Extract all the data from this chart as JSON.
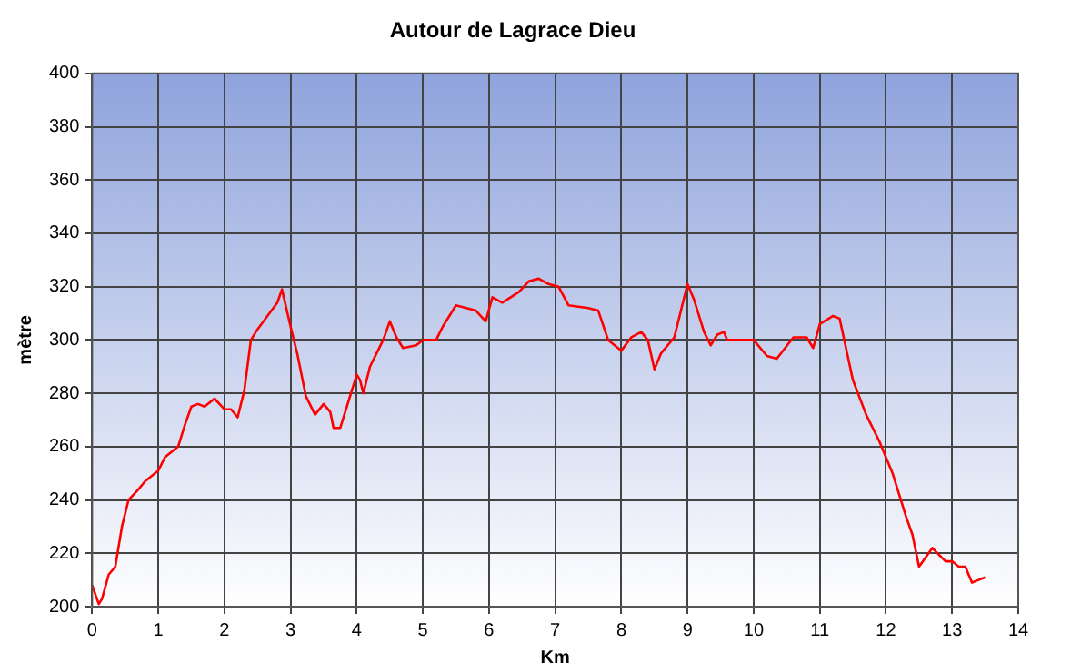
{
  "chart_data": {
    "type": "line",
    "title": "Autour de Lagrace Dieu",
    "xlabel": "Km",
    "ylabel": "mètre",
    "x": [
      0,
      0.1,
      0.15,
      0.25,
      0.35,
      0.45,
      0.55,
      0.7,
      0.8,
      1.0,
      1.1,
      1.3,
      1.4,
      1.5,
      1.6,
      1.7,
      1.85,
      2.0,
      2.1,
      2.2,
      2.3,
      2.4,
      2.5,
      2.65,
      2.8,
      2.87,
      3.0,
      3.1,
      3.23,
      3.37,
      3.5,
      3.6,
      3.65,
      3.75,
      3.8,
      3.9,
      4.0,
      4.05,
      4.1,
      4.2,
      4.4,
      4.5,
      4.6,
      4.7,
      4.9,
      5.0,
      5.2,
      5.3,
      5.5,
      5.8,
      5.95,
      6.05,
      6.2,
      6.45,
      6.6,
      6.75,
      6.9,
      7.05,
      7.2,
      7.5,
      7.65,
      7.8,
      8.0,
      8.15,
      8.3,
      8.4,
      8.5,
      8.6,
      8.8,
      9.0,
      9.1,
      9.25,
      9.35,
      9.45,
      9.55,
      9.6,
      10.0,
      10.2,
      10.35,
      10.6,
      10.8,
      10.9,
      11.0,
      11.2,
      11.3,
      11.5,
      11.7,
      11.9,
      12.1,
      12.3,
      12.4,
      12.5,
      12.7,
      12.9,
      13.0,
      13.1,
      13.2,
      13.3,
      13.4,
      13.5
    ],
    "series": [
      {
        "color": "#ff0000",
        "values": [
          208,
          201,
          203,
          212,
          215,
          230,
          240,
          244,
          247,
          251,
          256,
          260,
          268,
          275,
          276,
          275,
          278,
          274,
          274,
          271,
          281,
          300,
          304,
          309,
          314,
          319,
          305,
          295,
          279,
          272,
          276,
          273,
          267,
          267,
          271,
          279,
          287,
          285,
          280,
          290,
          300,
          307,
          301,
          297,
          298,
          300,
          300,
          305,
          313,
          311,
          307,
          316,
          314,
          318,
          322,
          323,
          321,
          320,
          313,
          312,
          311,
          300,
          296,
          301,
          303,
          300,
          289,
          295,
          301,
          321,
          315,
          303,
          298,
          302,
          303,
          300,
          300,
          294,
          293,
          301,
          301,
          297,
          306,
          309,
          308,
          285,
          272,
          262,
          250,
          234,
          227,
          215,
          222,
          217,
          217,
          215,
          215,
          209,
          210,
          211
        ]
      }
    ],
    "xlim": [
      0,
      14
    ],
    "xticks": [
      0,
      1,
      2,
      3,
      4,
      5,
      6,
      7,
      8,
      9,
      10,
      11,
      12,
      13,
      14
    ],
    "ylim": [
      200,
      400
    ],
    "yticks": [
      200,
      220,
      240,
      260,
      280,
      300,
      320,
      340,
      360,
      380,
      400
    ],
    "grid": true,
    "legend": false,
    "marker": "none",
    "line_style": "solid"
  }
}
